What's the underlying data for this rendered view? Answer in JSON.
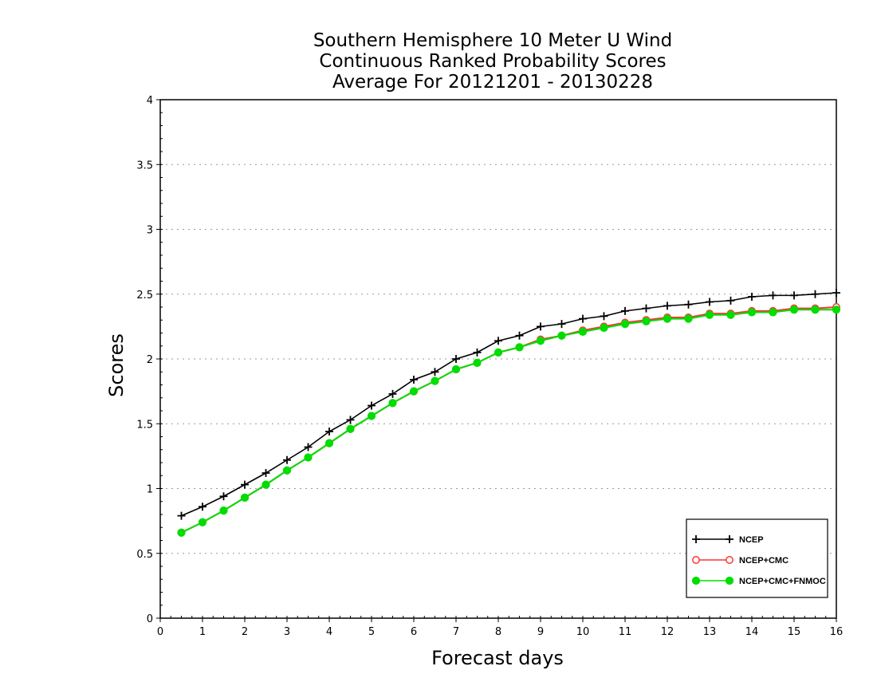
{
  "chart_data": {
    "type": "line",
    "title_lines": [
      "Southern Hemisphere 10 Meter U Wind",
      "Continuous Ranked Probability Scores",
      "Average For 20121201 - 20130228"
    ],
    "xlabel": "Forecast days",
    "ylabel": "Scores",
    "xlim": [
      0,
      16
    ],
    "ylim": [
      0,
      4
    ],
    "x_ticks": [
      "0",
      "1",
      "2",
      "3",
      "4",
      "5",
      "6",
      "7",
      "8",
      "9",
      "10",
      "11",
      "12",
      "13",
      "14",
      "15",
      "16"
    ],
    "y_ticks": [
      "0",
      "0.5",
      "1",
      "1.5",
      "2",
      "2.5",
      "3",
      "3.5",
      "4"
    ],
    "grid": "horizontal-dotted",
    "legend_position": "bottom-right",
    "x": [
      0.5,
      1,
      1.5,
      2,
      2.5,
      3,
      3.5,
      4,
      4.5,
      5,
      5.5,
      6,
      6.5,
      7,
      7.5,
      8,
      8.5,
      9,
      9.5,
      10,
      10.5,
      11,
      11.5,
      12,
      12.5,
      13,
      13.5,
      14,
      14.5,
      15,
      15.5,
      16
    ],
    "series": [
      {
        "name": "NCEP",
        "color": "#000000",
        "marker": "plus",
        "values": [
          0.79,
          0.86,
          0.94,
          1.03,
          1.12,
          1.22,
          1.32,
          1.44,
          1.53,
          1.64,
          1.73,
          1.84,
          1.9,
          2.0,
          2.05,
          2.14,
          2.18,
          2.25,
          2.27,
          2.31,
          2.33,
          2.37,
          2.39,
          2.41,
          2.42,
          2.44,
          2.45,
          2.48,
          2.49,
          2.49,
          2.5,
          2.51
        ]
      },
      {
        "name": "NCEP+CMC",
        "color": "#ff3333",
        "marker": "open-circle",
        "values": [
          0.66,
          0.74,
          0.83,
          0.93,
          1.03,
          1.14,
          1.24,
          1.35,
          1.46,
          1.56,
          1.66,
          1.75,
          1.83,
          1.92,
          1.97,
          2.05,
          2.09,
          2.15,
          2.18,
          2.22,
          2.25,
          2.28,
          2.3,
          2.32,
          2.32,
          2.35,
          2.35,
          2.37,
          2.37,
          2.39,
          2.39,
          2.4
        ]
      },
      {
        "name": "NCEP+CMC+FNMOC",
        "color": "#00dd00",
        "marker": "filled-circle",
        "values": [
          0.66,
          0.74,
          0.83,
          0.93,
          1.03,
          1.14,
          1.24,
          1.35,
          1.46,
          1.56,
          1.66,
          1.75,
          1.83,
          1.92,
          1.97,
          2.05,
          2.09,
          2.14,
          2.18,
          2.21,
          2.24,
          2.27,
          2.29,
          2.31,
          2.31,
          2.34,
          2.34,
          2.36,
          2.36,
          2.38,
          2.38,
          2.38
        ]
      }
    ]
  }
}
